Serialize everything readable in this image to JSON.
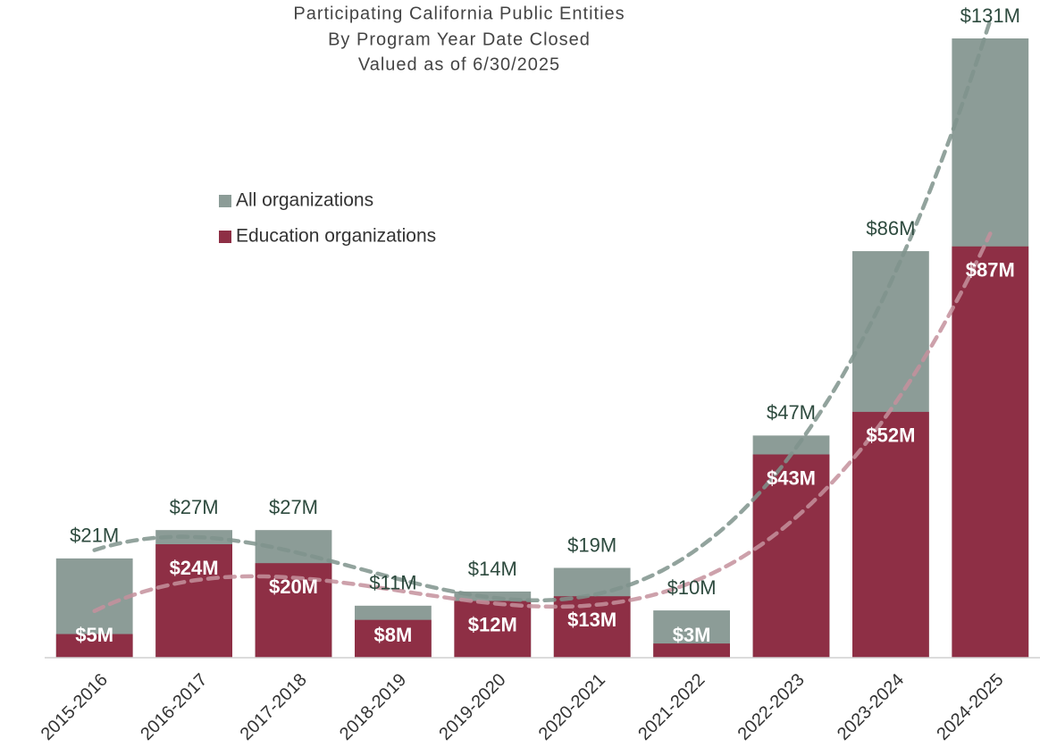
{
  "chart_data": {
    "type": "bar",
    "mode": "overlap",
    "title": "Participating California Public Entities",
    "subtitle": [
      "By Program Year Date Closed",
      "Valued as of 6/30/2025"
    ],
    "categories": [
      "2015-2016",
      "2016-2017",
      "2017-2018",
      "2018-2019",
      "2019-2020",
      "2020-2021",
      "2021-2022",
      "2022-2023",
      "2023-2024",
      "2024-2025"
    ],
    "series": [
      {
        "name": "All organizations",
        "color": "#8c9c97",
        "trend_color": "#7f938c",
        "values": [
          21,
          27,
          27,
          11,
          14,
          19,
          10,
          47,
          86,
          131
        ],
        "value_labels": [
          "$21M",
          "$27M",
          "$27M",
          "$11M",
          "$14M",
          "$19M",
          "$10M",
          "$47M",
          "$86M",
          "$131M"
        ]
      },
      {
        "name": "Education organizations",
        "color": "#8e2f45",
        "trend_color": "#c4909c",
        "values": [
          5,
          24,
          20,
          8,
          12,
          13,
          3,
          43,
          52,
          87
        ],
        "value_labels": [
          "$5M",
          "$24M",
          "$20M",
          "$8M",
          "$12M",
          "$13M",
          "$3M",
          "$43M",
          "$52M",
          "$87M"
        ]
      }
    ],
    "ylim": [
      0,
      131
    ],
    "trendline": "polynomial",
    "trend_order": 3,
    "legend": "upper left"
  }
}
